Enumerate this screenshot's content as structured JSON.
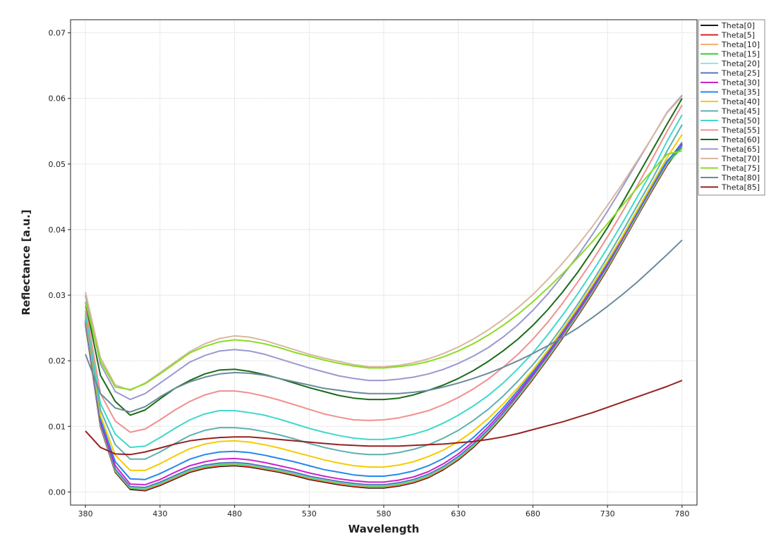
{
  "chart_data": {
    "type": "line",
    "title": "",
    "xlabel": "Wavelength",
    "ylabel": "Reflectance [a.u.]",
    "xlim": [
      370,
      790
    ],
    "ylim": [
      -0.002,
      0.072
    ],
    "xticks": [
      380,
      430,
      480,
      530,
      580,
      630,
      680,
      730,
      780
    ],
    "yticks": [
      0.0,
      0.01,
      0.02,
      0.03,
      0.04,
      0.05,
      0.06,
      0.07
    ],
    "xtick_labels": [
      "380",
      "430",
      "480",
      "530",
      "580",
      "630",
      "680",
      "730",
      "780"
    ],
    "ytick_labels": [
      "0.00",
      "0.01",
      "0.02",
      "0.03",
      "0.04",
      "0.05",
      "0.06",
      "0.07"
    ],
    "grid": true,
    "legend_position": "outside-right-top",
    "x": [
      380,
      390,
      400,
      410,
      420,
      430,
      440,
      450,
      460,
      470,
      480,
      490,
      500,
      510,
      520,
      530,
      540,
      550,
      560,
      570,
      580,
      590,
      600,
      610,
      620,
      630,
      640,
      650,
      660,
      670,
      680,
      690,
      700,
      710,
      720,
      730,
      740,
      750,
      760,
      770,
      780
    ],
    "series": [
      {
        "name": "Theta[0]",
        "color": "#1a1a1a",
        "values": [
          0.0255,
          0.01,
          0.003,
          0.0004,
          0.0002,
          0.001,
          0.002,
          0.003,
          0.0036,
          0.0039,
          0.004,
          0.0038,
          0.0034,
          0.003,
          0.0025,
          0.0019,
          0.0015,
          0.0011,
          0.0008,
          0.0006,
          0.0006,
          0.0009,
          0.0014,
          0.0022,
          0.0034,
          0.0049,
          0.0068,
          0.009,
          0.0115,
          0.0143,
          0.0172,
          0.0203,
          0.0235,
          0.0268,
          0.0303,
          0.034,
          0.038,
          0.042,
          0.046,
          0.0498,
          0.053
        ]
      },
      {
        "name": "Theta[5]",
        "color": "#e02020",
        "values": [
          0.0256,
          0.0101,
          0.0031,
          0.0005,
          0.0003,
          0.0011,
          0.0021,
          0.0031,
          0.0037,
          0.004,
          0.0041,
          0.0039,
          0.0035,
          0.0031,
          0.0026,
          0.002,
          0.0016,
          0.0012,
          0.0009,
          0.0007,
          0.0007,
          0.001,
          0.0015,
          0.0023,
          0.0035,
          0.005,
          0.0069,
          0.0091,
          0.0116,
          0.0144,
          0.0173,
          0.0204,
          0.0236,
          0.0269,
          0.0304,
          0.0341,
          0.0381,
          0.0421,
          0.0461,
          0.0499,
          0.0531
        ]
      },
      {
        "name": "Theta[10]",
        "color": "#f5b070",
        "values": [
          0.0257,
          0.0102,
          0.0032,
          0.0006,
          0.0004,
          0.0012,
          0.0022,
          0.0032,
          0.0038,
          0.0041,
          0.0042,
          0.004,
          0.0036,
          0.0032,
          0.0027,
          0.0021,
          0.0017,
          0.0013,
          0.001,
          0.0008,
          0.0008,
          0.0011,
          0.0016,
          0.0024,
          0.0036,
          0.0051,
          0.007,
          0.0092,
          0.0117,
          0.0145,
          0.0174,
          0.0205,
          0.0237,
          0.027,
          0.0305,
          0.0342,
          0.0382,
          0.0422,
          0.0462,
          0.05,
          0.0532
        ]
      },
      {
        "name": "Theta[15]",
        "color": "#33cc33",
        "values": [
          0.0258,
          0.0103,
          0.0033,
          0.0006,
          0.0005,
          0.0013,
          0.0023,
          0.0033,
          0.0039,
          0.0042,
          0.0043,
          0.0041,
          0.0037,
          0.0033,
          0.0028,
          0.0022,
          0.0018,
          0.0014,
          0.0011,
          0.0009,
          0.0009,
          0.0012,
          0.0017,
          0.0025,
          0.0037,
          0.0052,
          0.0071,
          0.0093,
          0.0118,
          0.0146,
          0.0175,
          0.0206,
          0.0238,
          0.0271,
          0.0306,
          0.0343,
          0.0383,
          0.0423,
          0.0463,
          0.0501,
          0.0525
        ]
      },
      {
        "name": "Theta[20]",
        "color": "#80f0e0",
        "values": [
          0.0259,
          0.0104,
          0.0034,
          0.0007,
          0.0006,
          0.0014,
          0.0024,
          0.0034,
          0.004,
          0.0043,
          0.0044,
          0.0042,
          0.0038,
          0.0034,
          0.0029,
          0.0023,
          0.0019,
          0.0015,
          0.0012,
          0.001,
          0.001,
          0.0013,
          0.0018,
          0.0026,
          0.0038,
          0.0053,
          0.0072,
          0.0094,
          0.0119,
          0.0147,
          0.0176,
          0.0207,
          0.0239,
          0.0272,
          0.0307,
          0.0344,
          0.0384,
          0.0424,
          0.0464,
          0.0502,
          0.0533
        ]
      },
      {
        "name": "Theta[25]",
        "color": "#5577bb",
        "values": [
          0.026,
          0.0105,
          0.0035,
          0.0008,
          0.0007,
          0.0015,
          0.0025,
          0.0035,
          0.0041,
          0.0044,
          0.0045,
          0.0043,
          0.0039,
          0.0035,
          0.003,
          0.0024,
          0.002,
          0.0016,
          0.0013,
          0.0011,
          0.0011,
          0.0014,
          0.0019,
          0.0027,
          0.0039,
          0.0054,
          0.0073,
          0.0095,
          0.012,
          0.0148,
          0.0177,
          0.0208,
          0.024,
          0.0273,
          0.0308,
          0.0345,
          0.0385,
          0.0425,
          0.0465,
          0.0503,
          0.0533
        ]
      },
      {
        "name": "Theta[30]",
        "color": "#cc22cc",
        "values": [
          0.0262,
          0.0108,
          0.004,
          0.0012,
          0.0011,
          0.0019,
          0.003,
          0.004,
          0.0046,
          0.005,
          0.0051,
          0.0049,
          0.0045,
          0.004,
          0.0035,
          0.0029,
          0.0024,
          0.002,
          0.0017,
          0.0015,
          0.0015,
          0.0018,
          0.0023,
          0.0031,
          0.0043,
          0.0058,
          0.0077,
          0.0099,
          0.0124,
          0.0151,
          0.018,
          0.0211,
          0.0243,
          0.0276,
          0.0311,
          0.0348,
          0.0387,
          0.0427,
          0.0467,
          0.0504,
          0.053
        ]
      },
      {
        "name": "Theta[35]",
        "color": "#2288ee",
        "values": [
          0.0265,
          0.0112,
          0.0046,
          0.002,
          0.0019,
          0.0028,
          0.0039,
          0.005,
          0.0057,
          0.0061,
          0.0062,
          0.006,
          0.0056,
          0.0051,
          0.0046,
          0.004,
          0.0034,
          0.003,
          0.0026,
          0.0024,
          0.0024,
          0.0027,
          0.0032,
          0.004,
          0.0051,
          0.0065,
          0.0083,
          0.0104,
          0.0128,
          0.0155,
          0.0183,
          0.0214,
          0.0246,
          0.0279,
          0.0314,
          0.035,
          0.0389,
          0.0428,
          0.0468,
          0.0505,
          0.0528
        ]
      },
      {
        "name": "Theta[40]",
        "color": "#f5cc00",
        "values": [
          0.0268,
          0.0117,
          0.0056,
          0.0033,
          0.0033,
          0.0043,
          0.0055,
          0.0066,
          0.0073,
          0.0077,
          0.0078,
          0.0076,
          0.0072,
          0.0067,
          0.0061,
          0.0055,
          0.0049,
          0.0044,
          0.004,
          0.0038,
          0.0038,
          0.0041,
          0.0046,
          0.0054,
          0.0064,
          0.0077,
          0.0093,
          0.0112,
          0.0134,
          0.0159,
          0.0186,
          0.0216,
          0.0248,
          0.0281,
          0.0316,
          0.0352,
          0.039,
          0.043,
          0.047,
          0.051,
          0.0545
        ]
      },
      {
        "name": "Theta[45]",
        "color": "#5fb0b0",
        "values": [
          0.0272,
          0.0125,
          0.0072,
          0.005,
          0.005,
          0.0061,
          0.0074,
          0.0086,
          0.0094,
          0.0098,
          0.0098,
          0.0096,
          0.0092,
          0.0087,
          0.0081,
          0.0074,
          0.0068,
          0.0063,
          0.0059,
          0.0057,
          0.0057,
          0.006,
          0.0065,
          0.0072,
          0.0082,
          0.0094,
          0.0109,
          0.0126,
          0.0146,
          0.0169,
          0.0194,
          0.0222,
          0.0253,
          0.0286,
          0.0321,
          0.0358,
          0.0397,
          0.0437,
          0.0477,
          0.052,
          0.056
        ]
      },
      {
        "name": "Theta[50]",
        "color": "#40d8cc",
        "values": [
          0.0276,
          0.0135,
          0.0088,
          0.0068,
          0.007,
          0.0083,
          0.0097,
          0.011,
          0.0119,
          0.0124,
          0.0124,
          0.0121,
          0.0117,
          0.0111,
          0.0104,
          0.0097,
          0.0091,
          0.0086,
          0.0082,
          0.008,
          0.008,
          0.0083,
          0.0088,
          0.0095,
          0.0105,
          0.0117,
          0.0131,
          0.0147,
          0.0166,
          0.0188,
          0.0212,
          0.024,
          0.027,
          0.0302,
          0.0336,
          0.0372,
          0.041,
          0.045,
          0.049,
          0.0535,
          0.0575
        ]
      },
      {
        "name": "Theta[55]",
        "color": "#f09090",
        "values": [
          0.0283,
          0.015,
          0.0108,
          0.0091,
          0.0096,
          0.011,
          0.0125,
          0.0138,
          0.0148,
          0.0154,
          0.0154,
          0.0151,
          0.0146,
          0.014,
          0.0133,
          0.0126,
          0.0119,
          0.0114,
          0.011,
          0.0109,
          0.011,
          0.0113,
          0.0118,
          0.0124,
          0.0133,
          0.0144,
          0.0157,
          0.0172,
          0.019,
          0.021,
          0.0233,
          0.0259,
          0.0288,
          0.032,
          0.0353,
          0.0389,
          0.0427,
          0.0467,
          0.0508,
          0.055,
          0.059
        ]
      },
      {
        "name": "Theta[60]",
        "color": "#1a6b1a",
        "values": [
          0.029,
          0.0178,
          0.0138,
          0.0117,
          0.0125,
          0.0142,
          0.0158,
          0.017,
          0.018,
          0.0186,
          0.0187,
          0.0184,
          0.0179,
          0.0173,
          0.0166,
          0.0159,
          0.0153,
          0.0147,
          0.0143,
          0.0141,
          0.0141,
          0.0143,
          0.0148,
          0.0155,
          0.0163,
          0.0173,
          0.0185,
          0.0199,
          0.0215,
          0.0233,
          0.0254,
          0.0278,
          0.0305,
          0.0335,
          0.0368,
          0.0403,
          0.0441,
          0.0481,
          0.0521,
          0.0561,
          0.06
        ]
      },
      {
        "name": "Theta[65]",
        "color": "#9a98d0",
        "values": [
          0.03,
          0.0195,
          0.0153,
          0.0141,
          0.015,
          0.0166,
          0.0182,
          0.0198,
          0.0208,
          0.0215,
          0.0217,
          0.0215,
          0.021,
          0.0203,
          0.0196,
          0.0189,
          0.0183,
          0.0177,
          0.0173,
          0.017,
          0.017,
          0.0172,
          0.0175,
          0.018,
          0.0187,
          0.0196,
          0.0207,
          0.022,
          0.0236,
          0.0255,
          0.0277,
          0.0302,
          0.033,
          0.036,
          0.0393,
          0.0428,
          0.0465,
          0.0503,
          0.0541,
          0.0579,
          0.0605
        ]
      },
      {
        "name": "Theta[70]",
        "color": "#d8b8a0",
        "values": [
          0.0305,
          0.0205,
          0.0163,
          0.0155,
          0.0166,
          0.0182,
          0.0198,
          0.0214,
          0.0226,
          0.0234,
          0.0238,
          0.0236,
          0.0231,
          0.0224,
          0.0217,
          0.021,
          0.0204,
          0.0199,
          0.0194,
          0.0191,
          0.0191,
          0.0193,
          0.0197,
          0.0203,
          0.0211,
          0.0221,
          0.0233,
          0.0247,
          0.0263,
          0.0281,
          0.0301,
          0.0324,
          0.0349,
          0.0376,
          0.0405,
          0.0437,
          0.047,
          0.0505,
          0.0541,
          0.0578,
          0.0603
        ]
      },
      {
        "name": "Theta[75]",
        "color": "#88dd22",
        "values": [
          0.029,
          0.02,
          0.016,
          0.0156,
          0.0165,
          0.018,
          0.0196,
          0.0212,
          0.0222,
          0.0229,
          0.0232,
          0.023,
          0.0226,
          0.022,
          0.0213,
          0.0207,
          0.0201,
          0.0196,
          0.0192,
          0.0189,
          0.0189,
          0.0191,
          0.0194,
          0.0199,
          0.0206,
          0.0215,
          0.0226,
          0.0239,
          0.0254,
          0.0271,
          0.029,
          0.0311,
          0.0333,
          0.0357,
          0.0382,
          0.0409,
          0.0437,
          0.0464,
          0.049,
          0.0515,
          0.052
        ]
      },
      {
        "name": "Theta[80]",
        "color": "#6a8a9a",
        "values": [
          0.021,
          0.015,
          0.0128,
          0.0122,
          0.013,
          0.0145,
          0.0158,
          0.0168,
          0.0175,
          0.018,
          0.0182,
          0.0181,
          0.0178,
          0.0173,
          0.0168,
          0.0163,
          0.0158,
          0.0155,
          0.0152,
          0.015,
          0.015,
          0.015,
          0.0152,
          0.0155,
          0.016,
          0.0166,
          0.0173,
          0.0181,
          0.019,
          0.02,
          0.0211,
          0.0223,
          0.0236,
          0.025,
          0.0266,
          0.0283,
          0.0301,
          0.032,
          0.0341,
          0.0362,
          0.0384
        ]
      },
      {
        "name": "Theta[85]",
        "color": "#992020",
        "values": [
          0.0093,
          0.0068,
          0.0058,
          0.0057,
          0.0061,
          0.0067,
          0.0073,
          0.0078,
          0.0081,
          0.0083,
          0.0084,
          0.0084,
          0.0082,
          0.008,
          0.0078,
          0.0076,
          0.0074,
          0.0072,
          0.0071,
          0.007,
          0.007,
          0.007,
          0.0071,
          0.0072,
          0.0073,
          0.0075,
          0.0077,
          0.008,
          0.0084,
          0.0089,
          0.0095,
          0.0101,
          0.0107,
          0.0114,
          0.0121,
          0.0129,
          0.0137,
          0.0145,
          0.0153,
          0.0161,
          0.017
        ]
      }
    ]
  }
}
